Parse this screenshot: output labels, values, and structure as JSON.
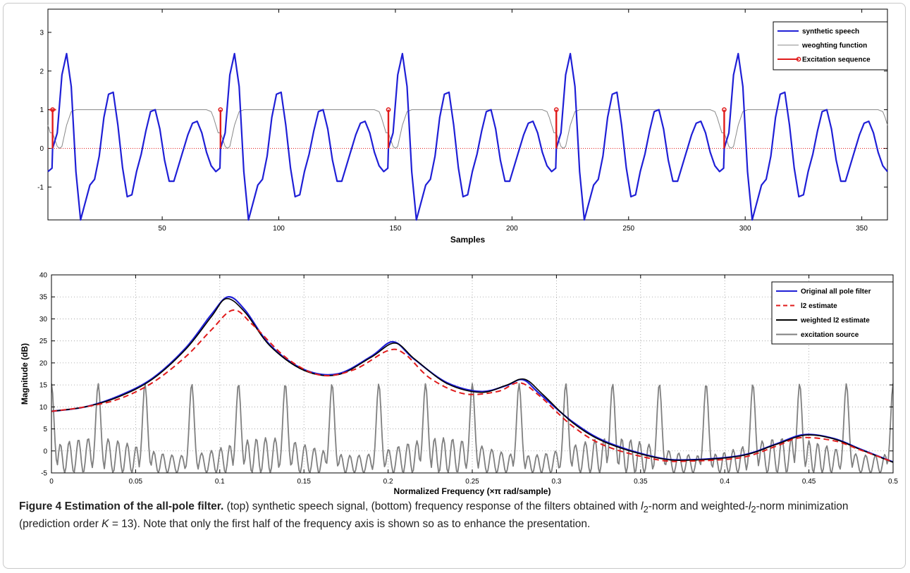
{
  "caption": {
    "label": "Figure 4",
    "title": "Estimation of the all-pole filter.",
    "text_1": "(top) synthetic speech signal, (bottom) frequency response of the filters obtained with",
    "l_sym": "l",
    "sub_2": "2",
    "text_2": "-norm and weighted-",
    "text_3": "-norm minimization (prediction order",
    "k_sym": "K",
    "text_4": "= 13). Note that only the first half of the frequency axis is shown so as to enhance the presentation."
  },
  "chart_data": [
    {
      "type": "line",
      "xlabel": "Samples",
      "ylabel": "",
      "xlim": [
        1,
        361
      ],
      "ylim": [
        -1.85,
        3.6
      ],
      "xticks": [
        50,
        100,
        150,
        200,
        250,
        300,
        350
      ],
      "yticks": [
        -1,
        0,
        1,
        2,
        3
      ],
      "grid": false,
      "legend_position": "top-right",
      "period": 72,
      "pulse_positions": [
        3,
        75,
        147,
        219,
        291
      ],
      "series": [
        {
          "name": "synthetic speech",
          "color": "#1f1fd6",
          "shape_points": [
            [
              0,
              0
            ],
            [
              2,
              0.4
            ],
            [
              4,
              1.9
            ],
            [
              6,
              2.45
            ],
            [
              8,
              1.6
            ],
            [
              10,
              -0.6
            ],
            [
              12,
              -1.85
            ],
            [
              14,
              -1.4
            ],
            [
              16,
              -0.95
            ],
            [
              18,
              -0.8
            ],
            [
              20,
              -0.2
            ],
            [
              22,
              0.8
            ],
            [
              24,
              1.4
            ],
            [
              26,
              1.45
            ],
            [
              28,
              0.6
            ],
            [
              30,
              -0.5
            ],
            [
              32,
              -1.25
            ],
            [
              34,
              -1.2
            ],
            [
              36,
              -0.6
            ],
            [
              38,
              -0.15
            ],
            [
              40,
              0.45
            ],
            [
              42,
              0.95
            ],
            [
              44,
              1.0
            ],
            [
              46,
              0.5
            ],
            [
              48,
              -0.3
            ],
            [
              50,
              -0.85
            ],
            [
              52,
              -0.85
            ],
            [
              54,
              -0.45
            ],
            [
              56,
              -0.05
            ],
            [
              58,
              0.35
            ],
            [
              60,
              0.65
            ],
            [
              62,
              0.7
            ],
            [
              64,
              0.4
            ],
            [
              66,
              -0.1
            ],
            [
              68,
              -0.45
            ],
            [
              70,
              -0.6
            ],
            [
              72,
              -0.5
            ]
          ]
        },
        {
          "name": "weoghting function",
          "color": "#888888",
          "shape_points": [
            [
              0,
              0.4
            ],
            [
              2,
              0.05
            ],
            [
              3,
              0
            ],
            [
              4,
              0.05
            ],
            [
              6,
              0.6
            ],
            [
              8,
              0.95
            ],
            [
              10,
              1
            ],
            [
              66,
              1
            ],
            [
              68,
              0.95
            ],
            [
              69,
              0.8
            ],
            [
              70,
              0.6
            ],
            [
              71,
              0.4
            ],
            [
              72,
              0.4
            ]
          ]
        },
        {
          "name": "Excitation sequence",
          "color": "#e01b1b",
          "stem_value": 1,
          "baseline": 0
        }
      ]
    },
    {
      "type": "line",
      "xlabel": "Normalized Frequency  (×π rad/sample)",
      "ylabel": "Magnitude (dB)",
      "xlim": [
        0,
        0.5
      ],
      "ylim": [
        -5,
        40
      ],
      "xticks": [
        0,
        0.05,
        0.1,
        0.15,
        0.2,
        0.25,
        0.3,
        0.35,
        0.4,
        0.45,
        0.5
      ],
      "yticks": [
        -5,
        0,
        5,
        10,
        15,
        20,
        25,
        30,
        35,
        40
      ],
      "grid": true,
      "legend_position": "top-right",
      "series": [
        {
          "name": "Original all pole filter",
          "color": "#1f1fd6",
          "x": [
            0,
            0.02,
            0.04,
            0.06,
            0.08,
            0.095,
            0.105,
            0.115,
            0.13,
            0.15,
            0.17,
            0.19,
            0.203,
            0.215,
            0.235,
            0.255,
            0.27,
            0.28,
            0.29,
            0.31,
            0.33,
            0.36,
            0.38,
            0.41,
            0.43,
            0.447,
            0.465,
            0.48,
            0.5
          ],
          "y": [
            9,
            10,
            12.5,
            16.5,
            23.5,
            31,
            35,
            32,
            24,
            18.5,
            17.5,
            21.5,
            24.8,
            21,
            15.5,
            13.5,
            14.8,
            16.2,
            13,
            6.5,
            2,
            -1.5,
            -2,
            -1,
            1.5,
            3.7,
            2.8,
            0.5,
            -2.5
          ]
        },
        {
          "name": "l2 estimate",
          "color": "#e01b1b",
          "x": [
            0,
            0.02,
            0.04,
            0.06,
            0.08,
            0.095,
            0.108,
            0.12,
            0.14,
            0.16,
            0.18,
            0.2,
            0.21,
            0.225,
            0.245,
            0.265,
            0.278,
            0.29,
            0.31,
            0.33,
            0.36,
            0.38,
            0.41,
            0.43,
            0.445,
            0.465,
            0.48,
            0.5
          ],
          "y": [
            9,
            10,
            11.8,
            15.5,
            21.5,
            27.5,
            32,
            28.5,
            21,
            17.2,
            18.5,
            22.8,
            22,
            16.5,
            13,
            13.5,
            15.5,
            12.5,
            5.5,
            1,
            -2,
            -2.3,
            -1.5,
            1,
            3,
            2.3,
            0.3,
            -2.5
          ]
        },
        {
          "name": "weighted l2 estimate",
          "color": "#000000",
          "x": [
            0,
            0.02,
            0.04,
            0.06,
            0.08,
            0.095,
            0.104,
            0.115,
            0.13,
            0.15,
            0.17,
            0.19,
            0.204,
            0.216,
            0.235,
            0.255,
            0.27,
            0.281,
            0.292,
            0.31,
            0.33,
            0.36,
            0.38,
            0.41,
            0.43,
            0.448,
            0.465,
            0.48,
            0.5
          ],
          "y": [
            9,
            10,
            12.3,
            16.3,
            23.2,
            30.5,
            34.6,
            31.5,
            23.8,
            18.3,
            17.3,
            21.3,
            24.5,
            20.8,
            15.3,
            13.3,
            14.9,
            16.3,
            12.8,
            6.3,
            1.8,
            -1.6,
            -2.1,
            -1.1,
            1.4,
            3.6,
            2.7,
            0.4,
            -2.6
          ]
        },
        {
          "name": "excitation source",
          "color": "#7f7f7f",
          "period": 0.02778,
          "peak": 15.3,
          "floor": -5
        }
      ]
    }
  ]
}
